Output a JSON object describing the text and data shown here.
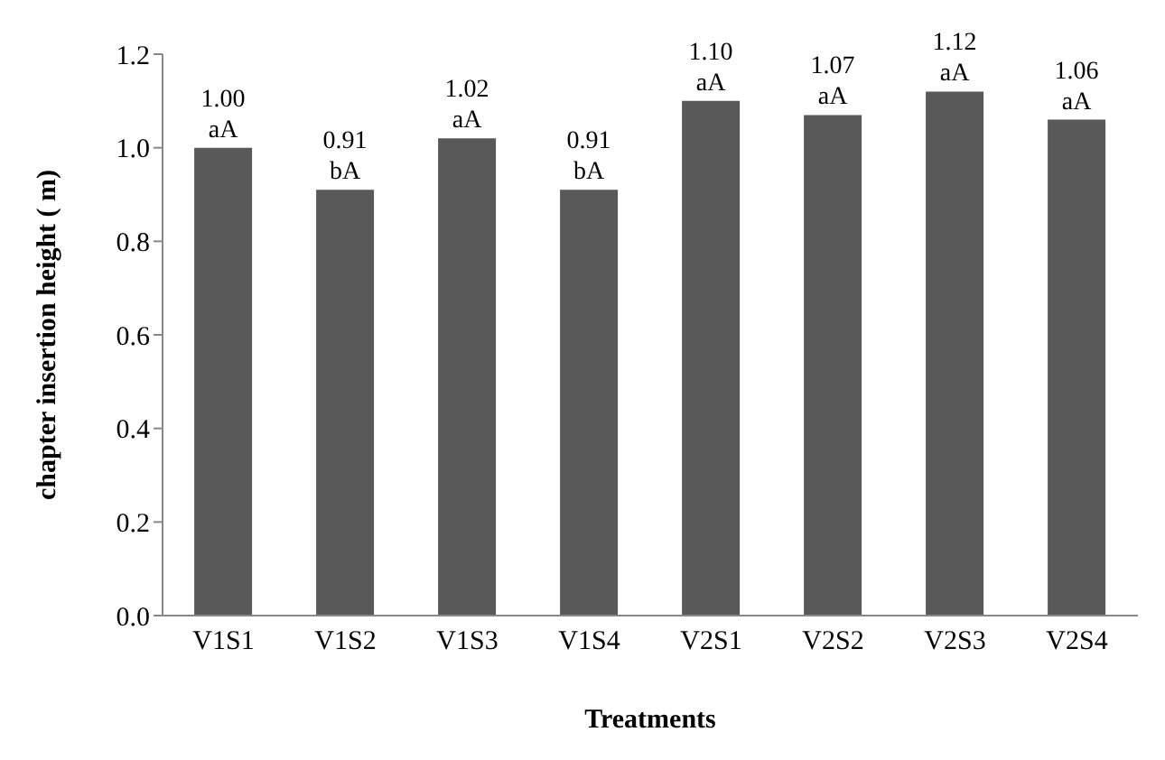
{
  "chart_data": {
    "type": "bar",
    "xlabel": "Treatments",
    "ylabel": "chapter insertion height ( m)",
    "categories": [
      "V1S1",
      "V1S2",
      "V1S3",
      "V1S4",
      "V2S1",
      "V2S2",
      "V2S3",
      "V2S4"
    ],
    "values": [
      1.0,
      0.91,
      1.02,
      0.91,
      1.1,
      1.07,
      1.12,
      1.06
    ],
    "value_labels": [
      "1.00\naA",
      "0.91\nbA",
      "1.02\naA",
      "0.91\nbA",
      "1.10\naA",
      "1.07\naA",
      "1.12\naA",
      "1.06\naA"
    ],
    "color": "#595959",
    "ylim": [
      0,
      1.2
    ],
    "yticks": [
      {
        "value": 0,
        "label": "0.0"
      },
      {
        "value": 0.2,
        "label": "0.2"
      },
      {
        "value": 0.4,
        "label": "0.4"
      },
      {
        "value": 0.6,
        "label": "0.6"
      },
      {
        "value": 0.8,
        "label": "0.8"
      },
      {
        "value": 1,
        "label": "1.0"
      },
      {
        "value": 1.2,
        "label": "1.2"
      }
    ],
    "grid": false,
    "legend": false
  }
}
